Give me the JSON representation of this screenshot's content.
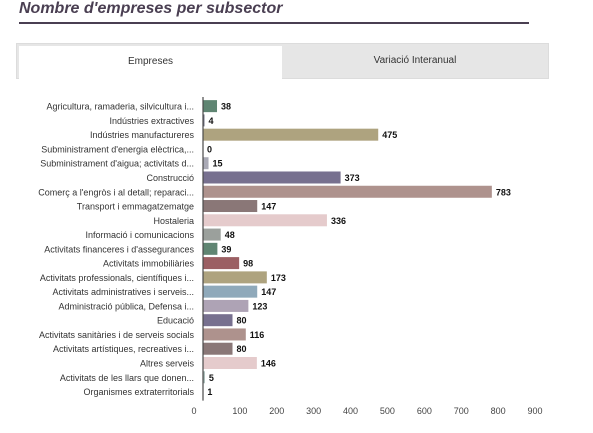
{
  "header": {
    "title": "Nombre d'empreses per subsector"
  },
  "tabs": [
    {
      "label": "Empreses",
      "active": true
    },
    {
      "label": "Variació Interanual",
      "active": false
    }
  ],
  "chart_data": {
    "type": "bar",
    "orientation": "horizontal",
    "title": "",
    "xlabel": "",
    "ylabel": "",
    "xlim": [
      0,
      900
    ],
    "x_ticks": [
      0,
      100,
      200,
      300,
      400,
      500,
      600,
      700,
      800,
      900
    ],
    "grid": false,
    "legend": "none",
    "categories": [
      "Agricultura, ramaderia, silvicultura i...",
      "Indústries extractives",
      "Indústries manufactureres",
      "Subministrament d'energia elèctrica,...",
      "Subministrament d'aigua; activitats d...",
      "Construcció",
      "Comerç a l'engròs i al detall; reparaci...",
      "Transport i emmagatzematge",
      "Hostaleria",
      "Informació i comunicacions",
      "Activitats financeres i d'assegurances",
      "Activitats immobiliàries",
      "Activitats professionals, científiques i...",
      "Activitats administratives i serveis...",
      "Administració pública, Defensa i...",
      "Educació",
      "Activitats sanitàries i de serveis socials",
      "Activitats artístiques, recreatives i...",
      "Altres serveis",
      "Activitats de les llars que donen...",
      "Organismes extraterritorials"
    ],
    "values": [
      38,
      4,
      475,
      0,
      15,
      373,
      783,
      147,
      336,
      48,
      39,
      98,
      173,
      147,
      123,
      80,
      116,
      80,
      146,
      5,
      1
    ],
    "colors": [
      "#5f8572",
      "#6f6f80",
      "#aea37f",
      "#9a9a9a",
      "#a9a9b5",
      "#77708f",
      "#ae928d",
      "#8a7777",
      "#e5cbcc",
      "#9ba09c",
      "#5f8572",
      "#9b5f63",
      "#aea37f",
      "#8fa9ba",
      "#aea3b5",
      "#77708f",
      "#ae928d",
      "#8a7777",
      "#e5cbcc",
      "#9fb5b0",
      "#9a9a9a"
    ]
  }
}
